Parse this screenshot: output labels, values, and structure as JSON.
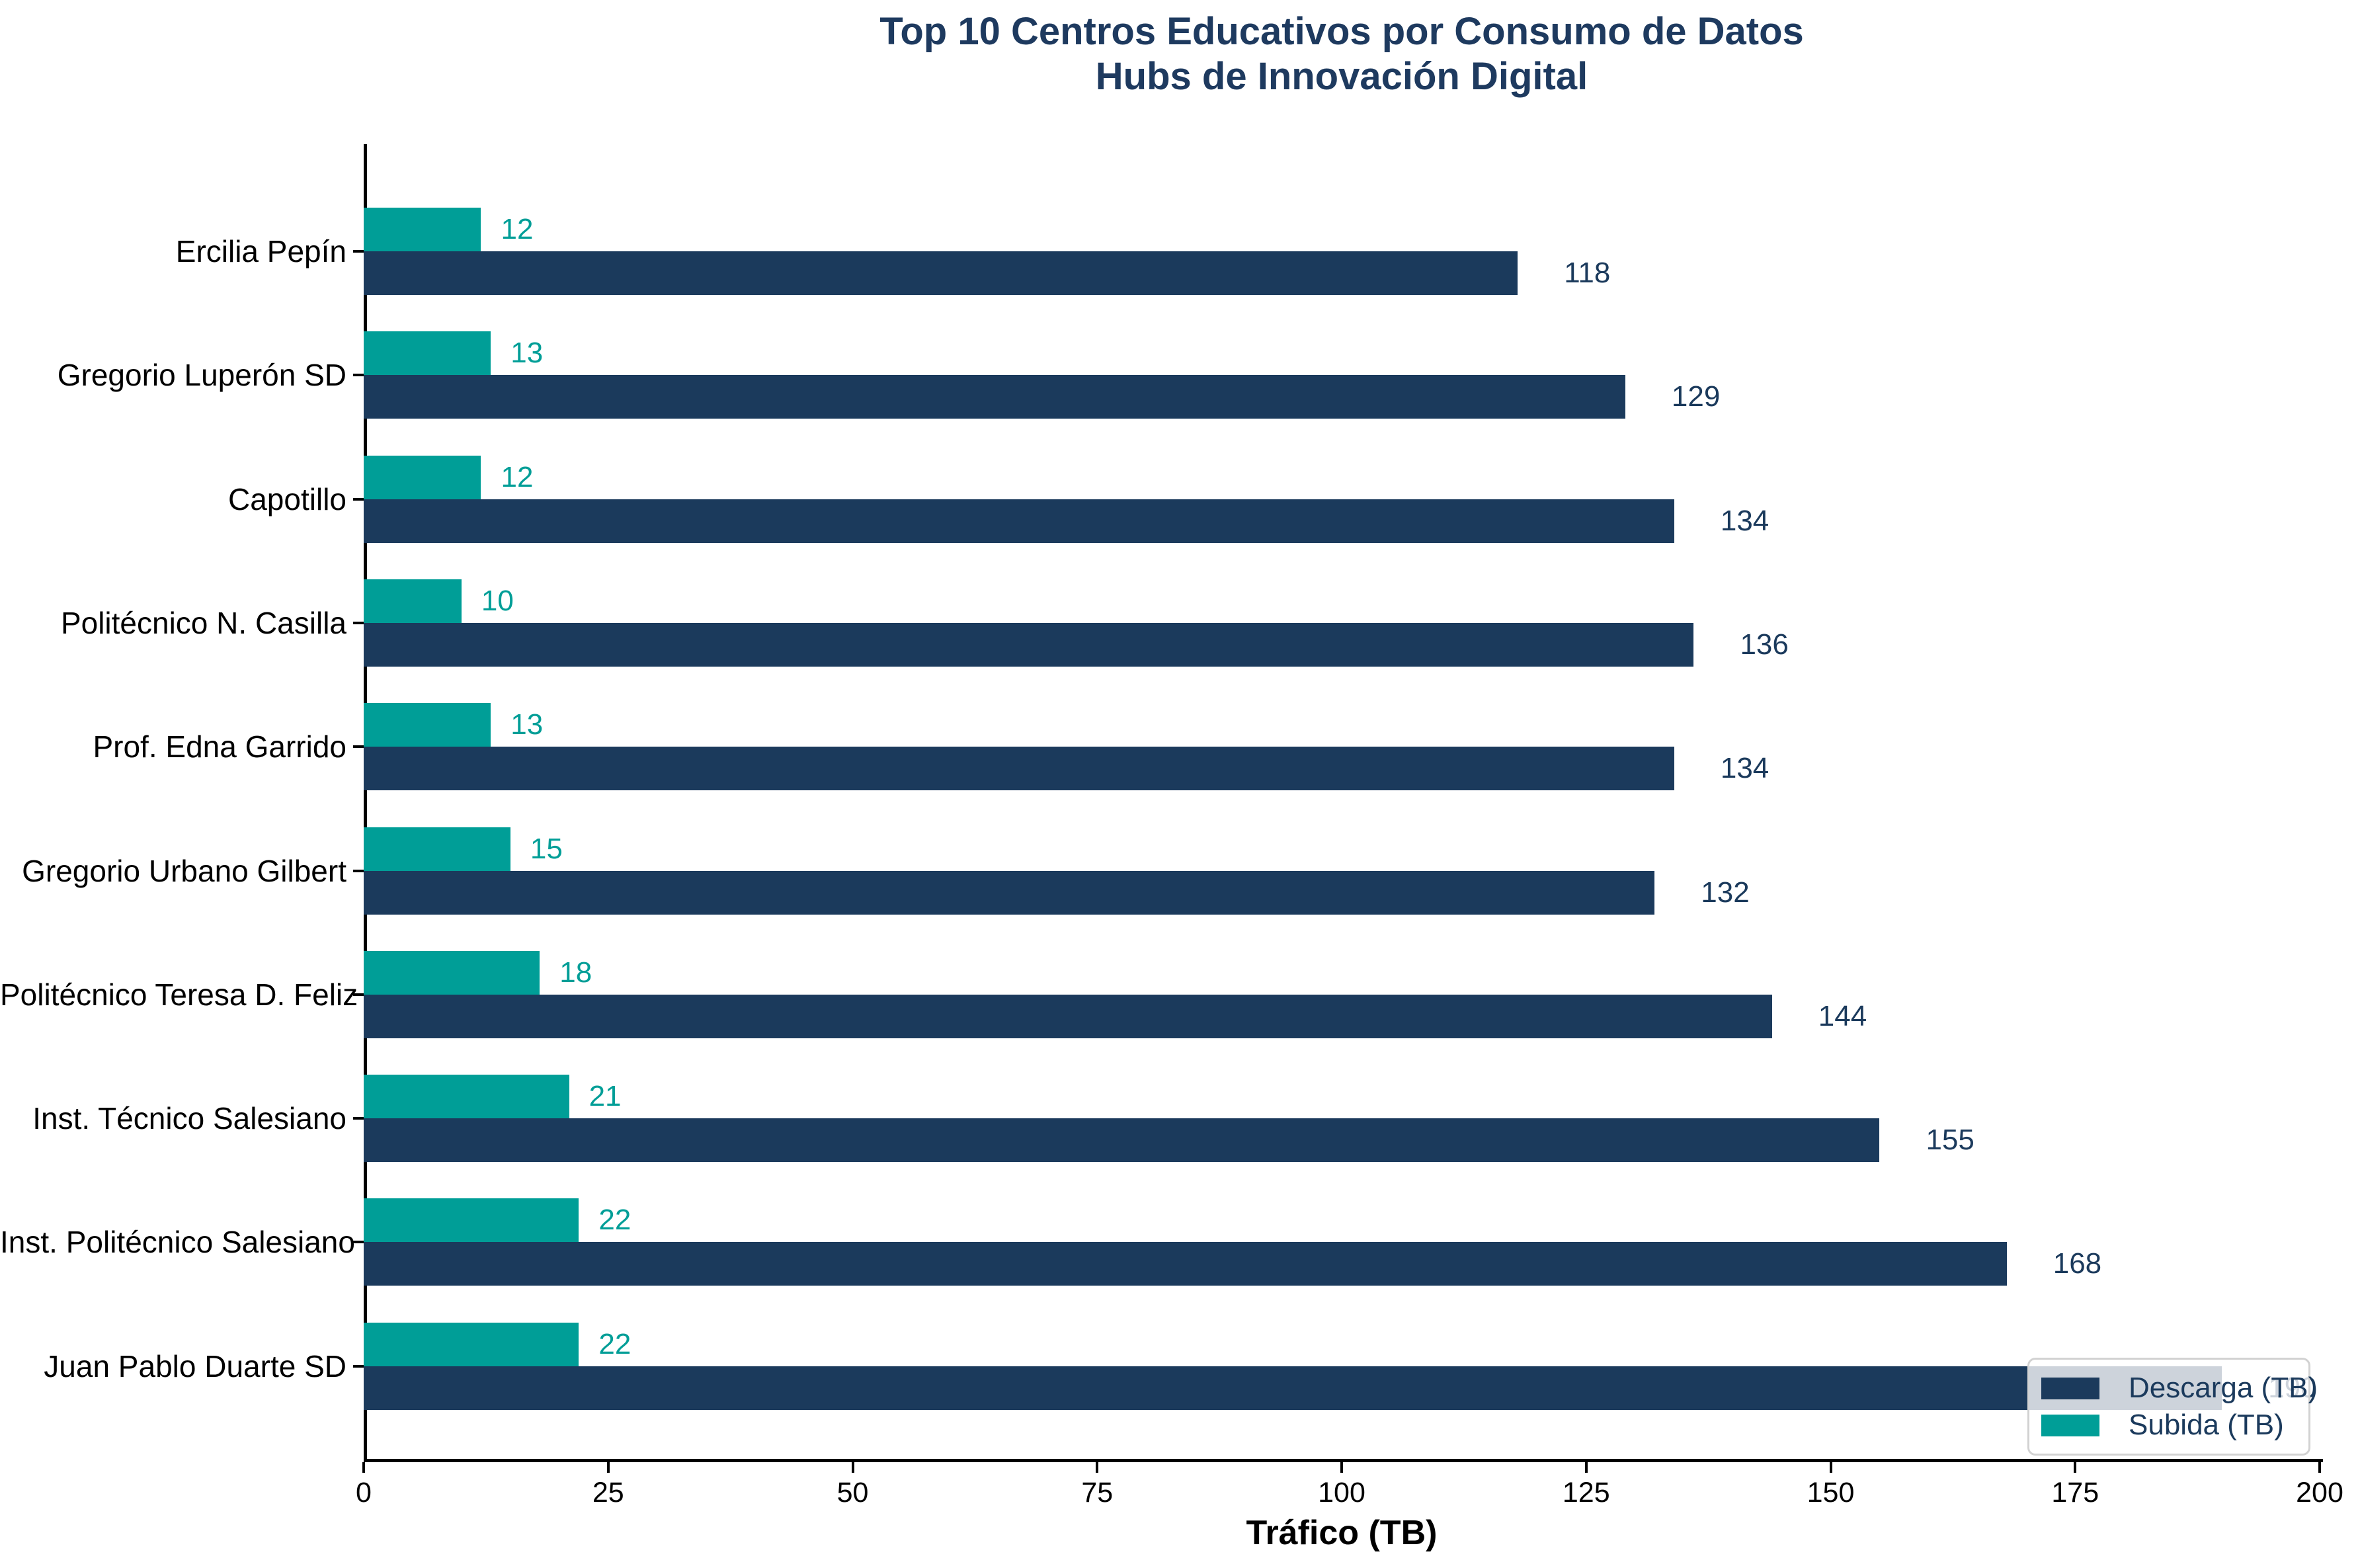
{
  "chart_data": {
    "type": "bar",
    "orientation": "horizontal",
    "title_line1": "Top 10 Centros Educativos por Consumo de Datos",
    "title_line2": "Hubs de Innovación Digital",
    "xlabel": "Tráfico (TB)",
    "categories": [
      "Ercilia Pepín",
      "Gregorio Luperón SD",
      "Capotillo",
      "Politécnico N. Casilla",
      "Prof. Edna Garrido",
      "Gregorio Urbano Gilbert",
      "Politécnico Teresa D. Feliz",
      "Inst. Técnico Salesiano",
      "Inst. Politécnico Salesiano",
      "Juan Pablo Duarte SD"
    ],
    "series": [
      {
        "name": "Descarga (TB)",
        "color": "#1b3a5c",
        "values": [
          118,
          129,
          134,
          136,
          134,
          132,
          144,
          155,
          168,
          190
        ]
      },
      {
        "name": "Subida (TB)",
        "color": "#009e97",
        "values": [
          12,
          13,
          12,
          10,
          13,
          15,
          18,
          21,
          22,
          22
        ]
      }
    ],
    "x_ticks": [
      0,
      25,
      50,
      75,
      100,
      125,
      150,
      175,
      200
    ],
    "xlim": [
      0,
      200
    ],
    "grid": false,
    "legend_position": "lower right",
    "title_color": "#1e3a5f",
    "axis_text_color": "#000000"
  }
}
